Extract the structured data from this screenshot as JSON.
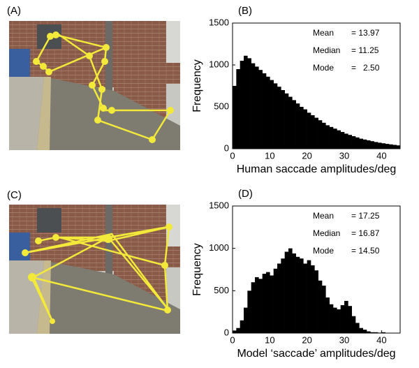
{
  "photo_labels": [
    "(A)",
    "(C)"
  ],
  "chart_data": [
    {
      "type": "histogram",
      "panel_label": "(B)",
      "xlabel": "Human saccade amplitudes/deg",
      "ylabel": "Frequency",
      "stats": [
        {
          "name": "Mean",
          "value": "= 13.97"
        },
        {
          "name": "Median",
          "value": "= 11.25"
        },
        {
          "name": "Mode",
          "value": "=   2.50"
        }
      ],
      "bins": [
        0,
        1,
        2,
        3,
        4,
        5,
        6,
        7,
        8,
        9,
        10,
        11,
        12,
        13,
        14,
        15,
        16,
        17,
        18,
        19,
        20,
        21,
        22,
        23,
        24,
        25,
        26,
        27,
        28,
        29,
        30,
        31,
        32,
        33,
        34,
        35,
        36,
        37,
        38,
        39,
        40,
        41,
        42,
        43,
        44,
        45
      ],
      "counts": [
        750,
        950,
        1050,
        1110,
        1080,
        1020,
        980,
        940,
        900,
        860,
        820,
        780,
        740,
        700,
        660,
        620,
        580,
        540,
        500,
        470,
        430,
        400,
        370,
        340,
        310,
        280,
        260,
        240,
        220,
        200,
        180,
        165,
        150,
        135,
        120,
        110,
        100,
        90,
        80,
        72,
        65,
        58,
        52,
        46,
        40
      ],
      "color": "#000000",
      "xlim": [
        0,
        45
      ],
      "xticks": [
        0,
        10,
        20,
        30,
        40
      ],
      "ylim": [
        0,
        1500
      ],
      "yticks": [
        0,
        500,
        1000,
        1500
      ]
    },
    {
      "type": "histogram",
      "panel_label": "(D)",
      "xlabel": "Model ‘saccade’ amplitudes/deg",
      "ylabel": "Frequency",
      "stats": [
        {
          "name": "Mean",
          "value": "= 17.25"
        },
        {
          "name": "Median",
          "value": "= 16.87"
        },
        {
          "name": "Mode",
          "value": "= 14.50"
        }
      ],
      "bins": [
        0,
        1,
        2,
        3,
        4,
        5,
        6,
        7,
        8,
        9,
        10,
        11,
        12,
        13,
        14,
        15,
        16,
        17,
        18,
        19,
        20,
        21,
        22,
        23,
        24,
        25,
        26,
        27,
        28,
        29,
        30,
        31,
        32,
        33,
        34,
        35,
        36,
        37,
        38,
        39,
        40,
        41,
        42,
        43,
        44,
        45
      ],
      "counts": [
        30,
        60,
        150,
        300,
        500,
        600,
        660,
        640,
        700,
        720,
        680,
        760,
        820,
        880,
        960,
        1000,
        940,
        900,
        880,
        820,
        860,
        800,
        740,
        620,
        560,
        420,
        340,
        300,
        280,
        330,
        380,
        320,
        200,
        120,
        60,
        40,
        20,
        10,
        10,
        5,
        10,
        0,
        0,
        0,
        0
      ],
      "color": "#000000",
      "xlim": [
        0,
        45
      ],
      "xticks": [
        0,
        10,
        20,
        30,
        40
      ],
      "ylim": [
        0,
        1500
      ],
      "yticks": [
        0,
        500,
        1000,
        1500
      ]
    }
  ]
}
